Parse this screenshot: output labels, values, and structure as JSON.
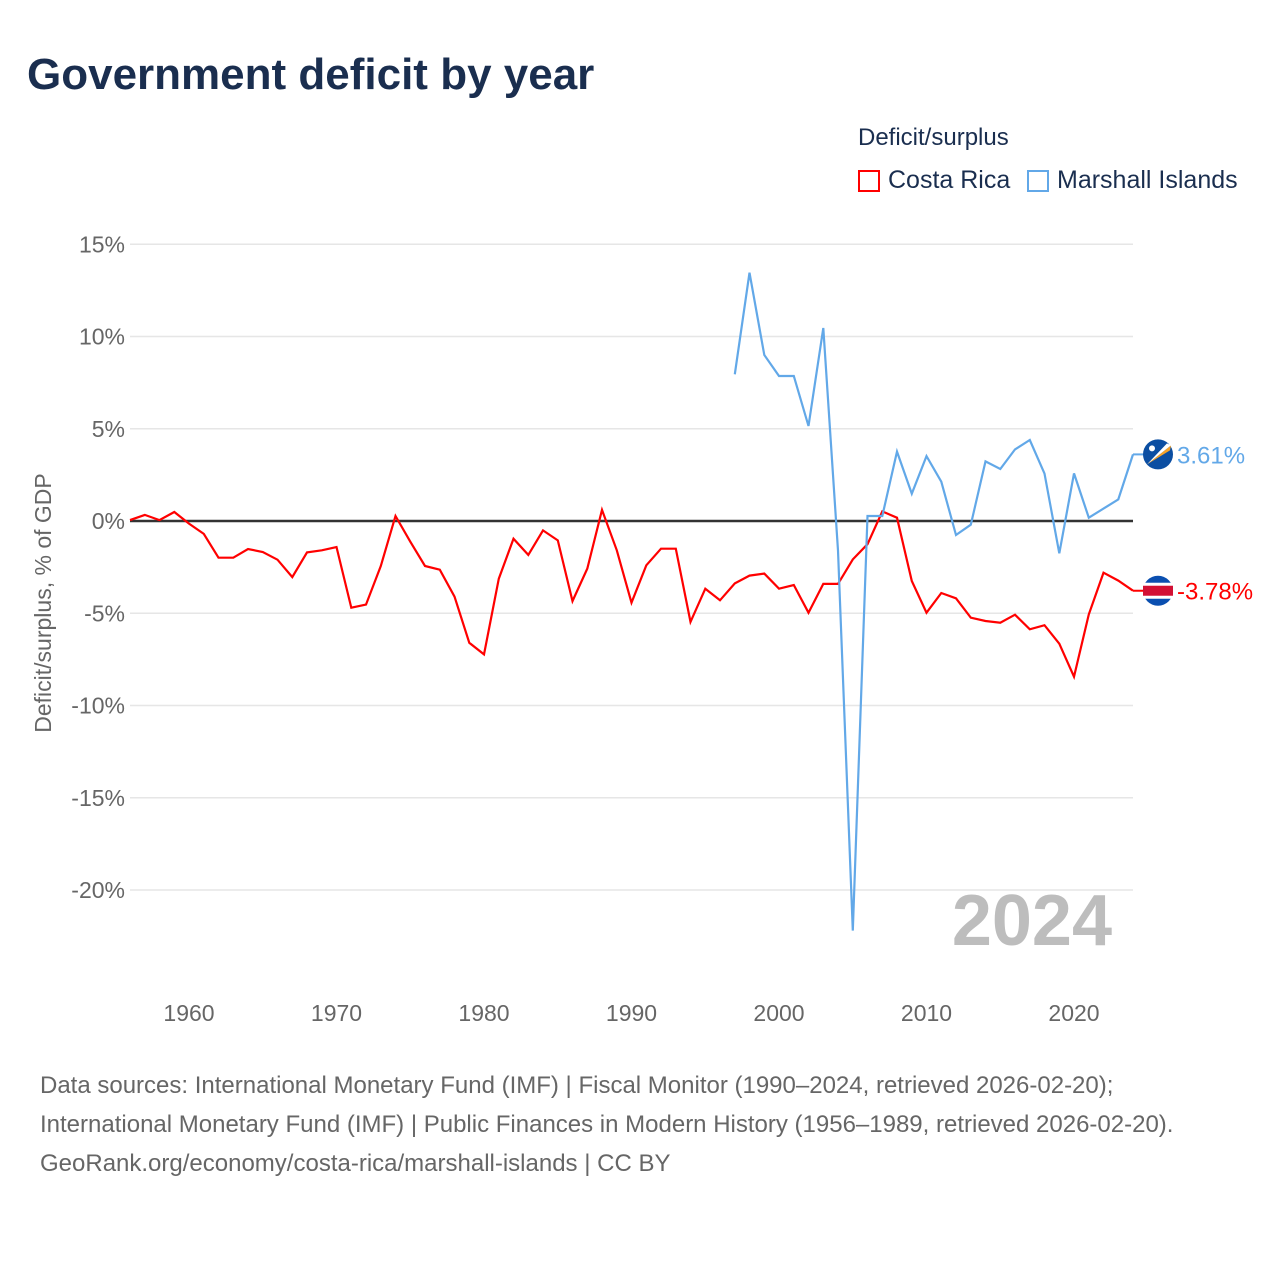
{
  "title": "Government deficit by year",
  "legend": {
    "title": "Deficit/surplus"
  },
  "footer": {
    "sources": "Data sources: International Monetary Fund (IMF) | Fiscal Monitor (1990–2024, retrieved 2026-02-20); International Monetary Fund (IMF) | Public Finances in Modern History (1956–1989, retrieved 2026-02-20).",
    "credit": "GeoRank.org/economy/costa-rica/marshall-islands | CC BY"
  },
  "chart_data": {
    "type": "line",
    "title": "Government deficit by year",
    "xlabel": "",
    "ylabel": "Deficit/surplus, % of GDP",
    "xlim": [
      1956,
      2024
    ],
    "ylim": [
      -24,
      15
    ],
    "yticks": [
      15,
      10,
      5,
      0,
      -5,
      -10,
      -15,
      -20
    ],
    "ytick_labels": [
      "15%",
      "10%",
      "5%",
      "0%",
      "-5%",
      "-10%",
      "-15%",
      "-20%"
    ],
    "xticks": [
      1960,
      1970,
      1980,
      1990,
      2000,
      2010,
      2020
    ],
    "xtick_labels": [
      "1960",
      "1970",
      "1980",
      "1990",
      "2000",
      "2010",
      "2020"
    ],
    "year_watermark": "2024",
    "grid": true,
    "legend_position": "top-right",
    "series": [
      {
        "name": "Costa Rica",
        "color": "#ff0000",
        "end_label": "-3.78%",
        "flag": "costa-rica-flag-icon",
        "x": [
          1956,
          1957,
          1958,
          1959,
          1960,
          1961,
          1962,
          1963,
          1964,
          1965,
          1966,
          1967,
          1968,
          1969,
          1970,
          1971,
          1972,
          1973,
          1974,
          1975,
          1976,
          1977,
          1978,
          1979,
          1980,
          1981,
          1982,
          1983,
          1984,
          1985,
          1986,
          1987,
          1988,
          1989,
          1990,
          1991,
          1992,
          1993,
          1994,
          1995,
          1996,
          1997,
          1998,
          1999,
          2000,
          2001,
          2002,
          2003,
          2004,
          2005,
          2006,
          2007,
          2008,
          2009,
          2010,
          2011,
          2012,
          2013,
          2014,
          2015,
          2016,
          2017,
          2018,
          2019,
          2020,
          2021,
          2022,
          2023,
          2024
        ],
        "values": [
          0.05,
          0.33,
          0.05,
          0.49,
          -0.14,
          -0.7,
          -1.99,
          -1.99,
          -1.52,
          -1.68,
          -2.1,
          -3.04,
          -1.7,
          -1.59,
          -1.41,
          -4.7,
          -4.53,
          -2.44,
          0.27,
          -1.12,
          -2.44,
          -2.64,
          -4.1,
          -6.6,
          -7.23,
          -3.13,
          -0.96,
          -1.84,
          -0.51,
          -1.05,
          -4.34,
          -2.58,
          0.6,
          -1.59,
          -4.43,
          -2.4,
          -1.5,
          -1.5,
          -5.47,
          -3.67,
          -4.3,
          -3.38,
          -2.96,
          -2.85,
          -3.67,
          -3.47,
          -4.97,
          -3.41,
          -3.41,
          -2.08,
          -1.26,
          0.52,
          0.18,
          -3.25,
          -4.97,
          -3.9,
          -4.19,
          -5.24,
          -5.42,
          -5.51,
          -5.08,
          -5.87,
          -5.65,
          -6.65,
          -8.44,
          -5.06,
          -2.8,
          -3.23,
          -3.78
        ]
      },
      {
        "name": "Marshall Islands",
        "color": "#62a8e8",
        "end_label": "3.61%",
        "flag": "marshall-islands-flag-icon",
        "x": [
          1997,
          1998,
          1999,
          2000,
          2001,
          2002,
          2003,
          2004,
          2005,
          2006,
          2007,
          2008,
          2009,
          2010,
          2011,
          2012,
          2013,
          2014,
          2015,
          2016,
          2017,
          2018,
          2019,
          2020,
          2021,
          2022,
          2023,
          2024
        ],
        "values": [
          7.95,
          13.46,
          9.0,
          7.86,
          7.86,
          5.15,
          10.46,
          -1.6,
          -22.2,
          0.27,
          0.27,
          3.76,
          1.48,
          3.52,
          2.13,
          -0.76,
          -0.2,
          3.23,
          2.82,
          3.88,
          4.39,
          2.57,
          -1.75,
          2.58,
          0.18,
          0.67,
          1.17,
          3.61
        ]
      }
    ]
  }
}
